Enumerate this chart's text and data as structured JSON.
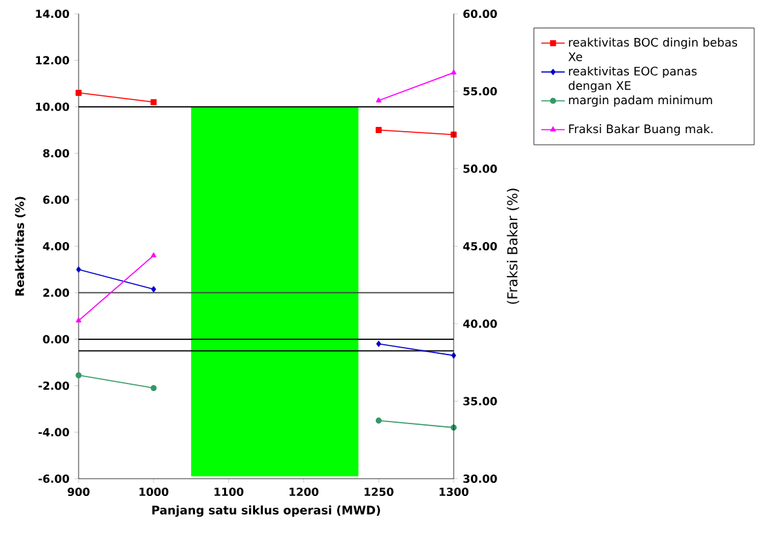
{
  "chart_data": {
    "type": "line",
    "xlabel": "Panjang satu siklus operasi (MWD)",
    "ylabel": "Reaktivitas (%)",
    "y2label": "(Fraksi Bakar (%)",
    "categories": [
      "900",
      "1000",
      "1100",
      "1200",
      "1250",
      "1300"
    ],
    "series": [
      {
        "name": "reaktivitas BOC dingin bebas Xe",
        "color": "#ff0000",
        "marker": "square",
        "values": [
          10.6,
          10.2,
          null,
          null,
          9.0,
          8.8
        ]
      },
      {
        "name": "reaktivitas EOC panas dengan XE",
        "color": "#0000cc",
        "marker": "diamond",
        "values": [
          3.0,
          2.15,
          null,
          null,
          -0.2,
          -0.7
        ]
      },
      {
        "name": "margin padam minimum",
        "color": "#339966",
        "marker": "circle",
        "values": [
          -1.55,
          -2.1,
          null,
          null,
          -3.5,
          -3.8
        ]
      },
      {
        "name": "Fraksi Bakar Buang mak.",
        "color": "#ff00ff",
        "marker": "triangle",
        "axis": "y2",
        "values": [
          40.2,
          44.4,
          null,
          null,
          54.4,
          56.2
        ]
      }
    ],
    "ylim": [
      -6,
      14
    ],
    "yticks": [
      {
        "value": -6,
        "label": "-6.00"
      },
      {
        "value": -4,
        "label": "-4.00"
      },
      {
        "value": -2,
        "label": "-2.00"
      },
      {
        "value": 0,
        "label": "0.00"
      },
      {
        "value": 2,
        "label": "2.00"
      },
      {
        "value": 4,
        "label": "4.00"
      },
      {
        "value": 6,
        "label": "6.00"
      },
      {
        "value": 8,
        "label": "8.00"
      },
      {
        "value": 10,
        "label": "10.00"
      },
      {
        "value": 12,
        "label": "12.00"
      },
      {
        "value": 14,
        "label": "14.00"
      }
    ],
    "y2lim": [
      30,
      60
    ],
    "y2ticks": [
      {
        "value": 30,
        "label": "30.00"
      },
      {
        "value": 35,
        "label": "35.00"
      },
      {
        "value": 40,
        "label": "40.00"
      },
      {
        "value": 45,
        "label": "45.00"
      },
      {
        "value": 50,
        "label": "50.00"
      },
      {
        "value": 55,
        "label": "55.00"
      },
      {
        "value": 60,
        "label": "60.00"
      }
    ],
    "ref_lines": [
      {
        "axis": "y",
        "value": 10,
        "color": "#000000"
      },
      {
        "axis": "y",
        "value": 2,
        "color": "#444444"
      },
      {
        "axis": "y",
        "value": 0,
        "color": "#000000"
      },
      {
        "axis": "y",
        "value": -0.5,
        "color": "#000000"
      }
    ],
    "legend": "right",
    "grid": false,
    "line_style": "solid"
  }
}
